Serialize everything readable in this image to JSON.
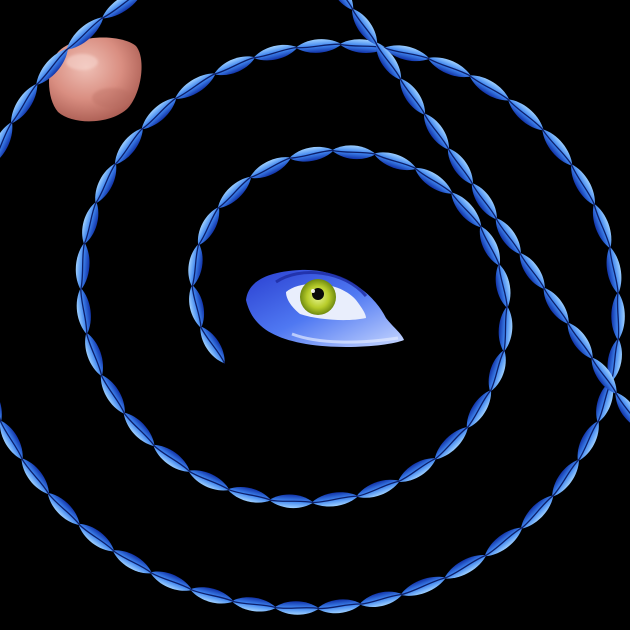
{
  "scene": {
    "background": "#000000",
    "subjects": [
      "pink-moon",
      "blue-lip-spiral",
      "blue-eye"
    ],
    "lips_per_link": 1
  },
  "colors": {
    "lip_light": "#9fd0ff",
    "lip_mid": "#3f86f0",
    "lip_dark": "#1233a8",
    "moon_light": "#efc0b6",
    "moon_mid": "#d98e81",
    "moon_dark": "#a85a50",
    "iris_light": "#e6f590",
    "iris_dark": "#6f8a10",
    "pupil": "#0a0a0a",
    "eye_skin": "#3c5ee8",
    "eye_highlight": "#c9d8ff"
  }
}
